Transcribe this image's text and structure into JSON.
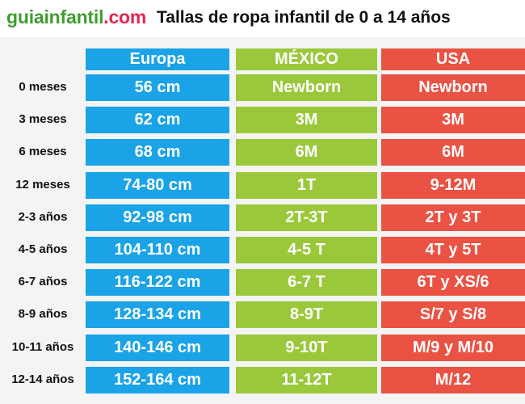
{
  "header": {
    "logo_main": "guiainfantil",
    "logo_suffix": ".com",
    "title": "Tallas de ropa infantil de 0 a 14 años"
  },
  "table": {
    "columns": [
      "Europa",
      "MÉXICO",
      "USA"
    ],
    "rows": [
      {
        "age": "0 meses",
        "europa": "56 cm",
        "mexico": "Newborn",
        "usa": "Newborn"
      },
      {
        "age": "3 meses",
        "europa": "62 cm",
        "mexico": "3M",
        "usa": "3M"
      },
      {
        "age": "6 meses",
        "europa": "68 cm",
        "mexico": "6M",
        "usa": "6M"
      },
      {
        "age": "12 meses",
        "europa": "74-80 cm",
        "mexico": "1T",
        "usa": "9-12M"
      },
      {
        "age": "2-3 años",
        "europa": "92-98 cm",
        "mexico": "2T-3T",
        "usa": "2T y 3T"
      },
      {
        "age": "4-5 años",
        "europa": "104-110 cm",
        "mexico": "4-5 T",
        "usa": "4T y 5T"
      },
      {
        "age": "6-7 años",
        "europa": "116-122 cm",
        "mexico": "6-7 T",
        "usa": "6T y XS/6"
      },
      {
        "age": "8-9 años",
        "europa": "128-134 cm",
        "mexico": "8-9T",
        "usa": "S/7 y S/8"
      },
      {
        "age": "10-11 años",
        "europa": "140-146 cm",
        "mexico": "9-10T",
        "usa": "M/9 y M/10"
      },
      {
        "age": "12-14 años",
        "europa": "152-164 cm",
        "mexico": "11-12T",
        "usa": "M/12"
      }
    ]
  },
  "colors": {
    "europa": "#1aa3e6",
    "mexico": "#9bc83b",
    "usa": "#ea5243",
    "logo_green": "#3f9d2f",
    "logo_red": "#e3264c"
  }
}
